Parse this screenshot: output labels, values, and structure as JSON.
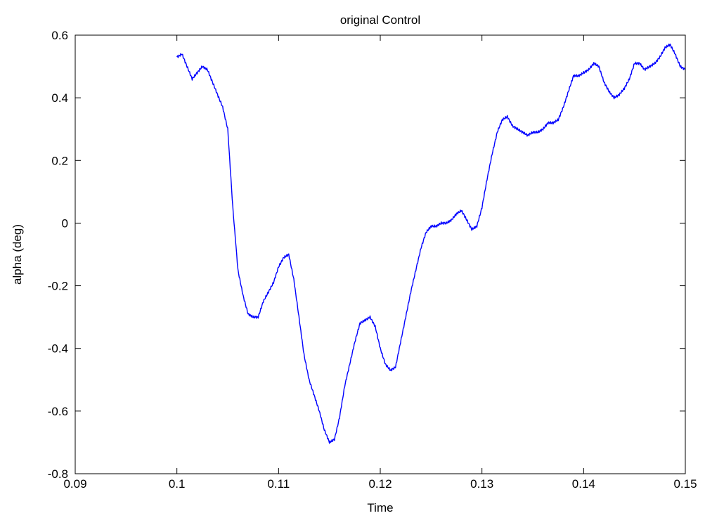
{
  "chart_data": {
    "type": "line",
    "title": "original Control",
    "xlabel": "Time",
    "ylabel": "alpha (deg)",
    "xlim": [
      0.09,
      0.15
    ],
    "ylim": [
      -0.8,
      0.6
    ],
    "xticks": [
      0.09,
      0.1,
      0.11,
      0.12,
      0.13,
      0.14,
      0.15
    ],
    "xtick_labels": [
      "0.09",
      "0.1",
      "0.11",
      "0.12",
      "0.13",
      "0.14",
      "0.15"
    ],
    "yticks": [
      -0.8,
      -0.6,
      -0.4,
      -0.2,
      0,
      0.2,
      0.4,
      0.6
    ],
    "ytick_labels": [
      "-0.8",
      "-0.6",
      "-0.4",
      "-0.2",
      "0",
      "0.2",
      "0.4",
      "0.6"
    ],
    "grid": false,
    "line_color": "#0000ff",
    "series": [
      {
        "x": [
          0.1,
          0.1005,
          0.101,
          0.1015,
          0.102,
          0.1025,
          0.103,
          0.1035,
          0.104,
          0.1045,
          0.105,
          0.1055,
          0.106,
          0.1065,
          0.107,
          0.1075,
          0.108,
          0.1085,
          0.109,
          0.1095,
          0.11,
          0.1105,
          0.111,
          0.1115,
          0.112,
          0.1125,
          0.113,
          0.1135,
          0.114,
          0.1145,
          0.115,
          0.1155,
          0.116,
          0.1165,
          0.117,
          0.1175,
          0.118,
          0.1185,
          0.119,
          0.1195,
          0.12,
          0.1205,
          0.121,
          0.1215,
          0.122,
          0.1225,
          0.123,
          0.1235,
          0.124,
          0.1245,
          0.125,
          0.1255,
          0.126,
          0.1265,
          0.127,
          0.1275,
          0.128,
          0.1285,
          0.129,
          0.1295,
          0.13,
          0.1305,
          0.131,
          0.1315,
          0.132,
          0.1325,
          0.133,
          0.1335,
          0.134,
          0.1345,
          0.135,
          0.1355,
          0.136,
          0.1365,
          0.137,
          0.1375,
          0.138,
          0.1385,
          0.139,
          0.1395,
          0.14,
          0.1405,
          0.141,
          0.1415,
          0.142,
          0.1425,
          0.143,
          0.1435,
          0.144,
          0.1445,
          0.145,
          0.1455,
          0.146,
          0.1465,
          0.147,
          0.1475,
          0.148,
          0.1485,
          0.149,
          0.1495,
          0.15
        ],
        "y": [
          0.53,
          0.54,
          0.5,
          0.46,
          0.48,
          0.5,
          0.49,
          0.45,
          0.41,
          0.37,
          0.3,
          0.05,
          -0.15,
          -0.23,
          -0.29,
          -0.3,
          -0.3,
          -0.25,
          -0.22,
          -0.19,
          -0.14,
          -0.11,
          -0.1,
          -0.18,
          -0.3,
          -0.42,
          -0.5,
          -0.55,
          -0.6,
          -0.66,
          -0.7,
          -0.69,
          -0.62,
          -0.52,
          -0.45,
          -0.38,
          -0.32,
          -0.31,
          -0.3,
          -0.33,
          -0.4,
          -0.45,
          -0.47,
          -0.46,
          -0.38,
          -0.3,
          -0.22,
          -0.15,
          -0.08,
          -0.03,
          -0.01,
          -0.01,
          0.0,
          0.0,
          0.01,
          0.03,
          0.04,
          0.01,
          -0.02,
          -0.01,
          0.05,
          0.14,
          0.22,
          0.29,
          0.33,
          0.34,
          0.31,
          0.3,
          0.29,
          0.28,
          0.29,
          0.29,
          0.3,
          0.32,
          0.32,
          0.33,
          0.37,
          0.42,
          0.47,
          0.47,
          0.48,
          0.49,
          0.51,
          0.5,
          0.45,
          0.42,
          0.4,
          0.41,
          0.43,
          0.46,
          0.51,
          0.51,
          0.49,
          0.5,
          0.51,
          0.53,
          0.56,
          0.57,
          0.54,
          0.5,
          0.49
        ]
      }
    ]
  }
}
